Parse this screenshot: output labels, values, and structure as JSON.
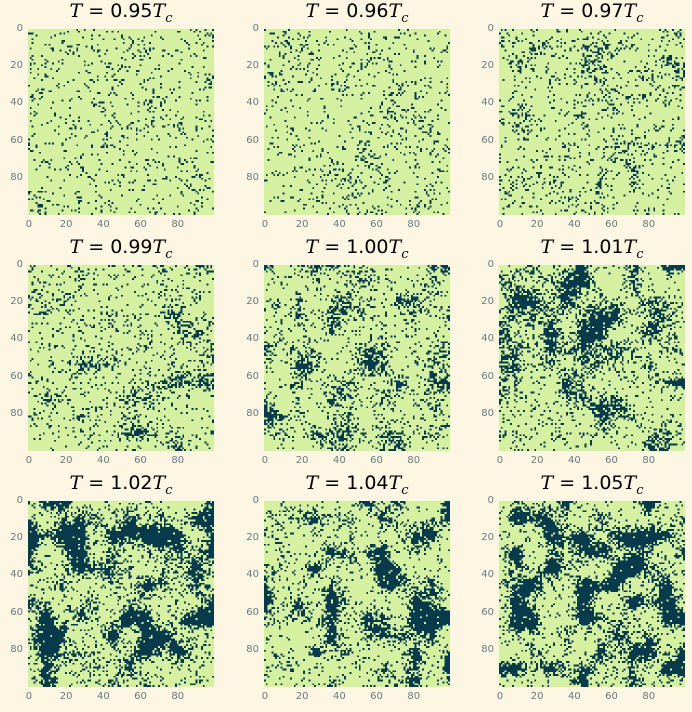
{
  "chart_data": {
    "type": "heatmap",
    "description_levels": "binary lattice (0 = low / light, 1 = high / dark)",
    "grid_size": [
      100,
      100
    ],
    "colormap": {
      "low": "#d4f0a0",
      "high": "#073b4c"
    },
    "x_ticks": [
      "0",
      "20",
      "40",
      "60",
      "80"
    ],
    "y_ticks": [
      "0",
      "20",
      "40",
      "60",
      "80"
    ],
    "panels": [
      {
        "label": "0.95",
        "dark_fraction": 0.07,
        "blob": 0.15
      },
      {
        "label": "0.96",
        "dark_fraction": 0.07,
        "blob": 0.25
      },
      {
        "label": "0.97",
        "dark_fraction": 0.09,
        "blob": 0.35
      },
      {
        "label": "0.99",
        "dark_fraction": 0.12,
        "blob": 0.45
      },
      {
        "label": "1.00",
        "dark_fraction": 0.15,
        "blob": 0.55
      },
      {
        "label": "1.01",
        "dark_fraction": 0.2,
        "blob": 0.65
      },
      {
        "label": "1.02",
        "dark_fraction": 0.32,
        "blob": 0.75
      },
      {
        "label": "1.04",
        "dark_fraction": 0.28,
        "blob": 0.75
      },
      {
        "label": "1.05",
        "dark_fraction": 0.38,
        "blob": 0.8
      }
    ]
  },
  "title_prefix": "T = ",
  "title_suffix_var": "T",
  "title_suffix_sub": "c"
}
